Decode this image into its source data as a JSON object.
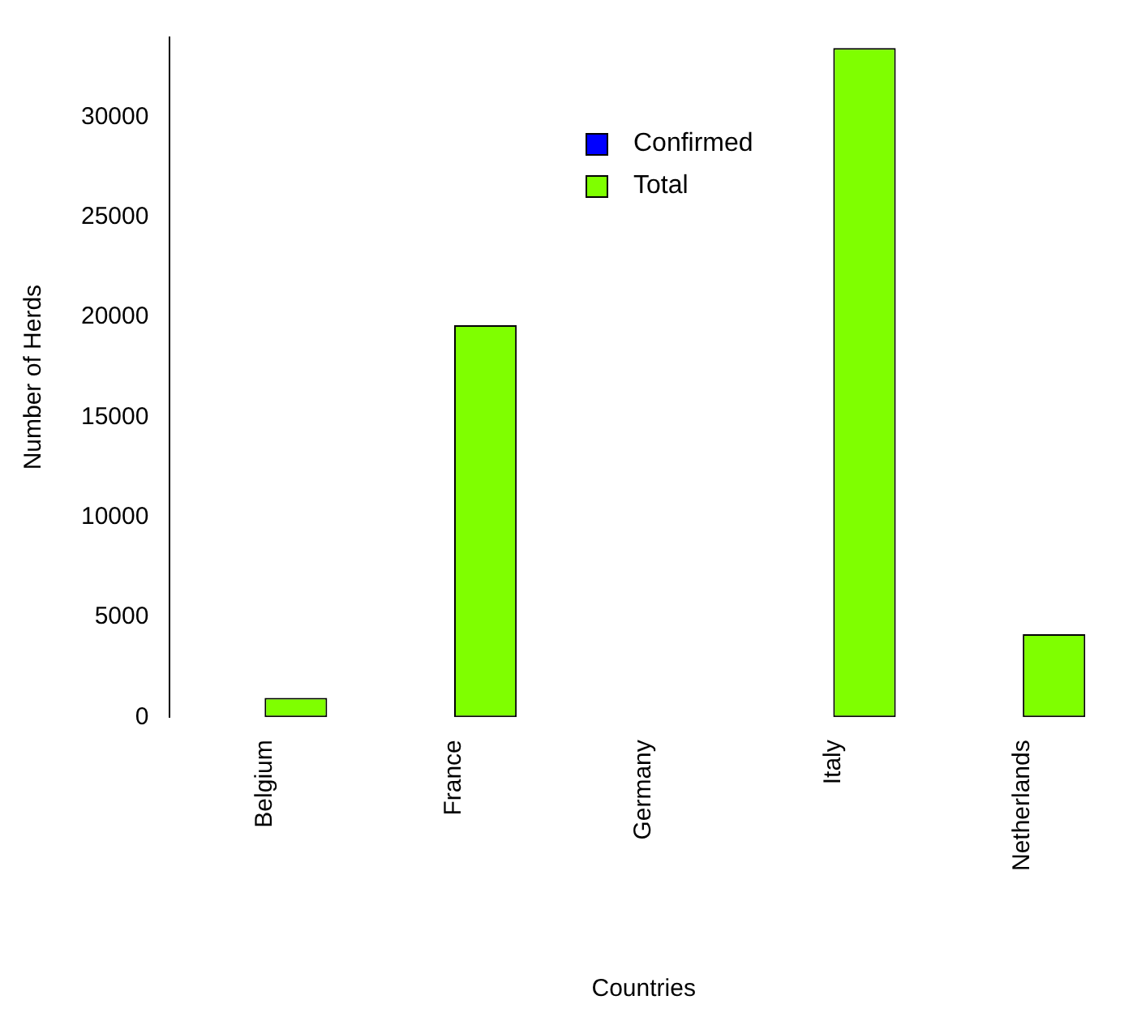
{
  "chart_data": {
    "type": "bar",
    "xlabel": "Countries",
    "ylabel": "Number of Herds",
    "categories": [
      "Belgium",
      "France",
      "Germany",
      "Italy",
      "Netherlands"
    ],
    "series": [
      {
        "name": "Confirmed",
        "color": "#0000ff",
        "values": [
          0,
          0,
          0,
          0,
          0
        ]
      },
      {
        "name": "Total",
        "color": "#7fff00",
        "values": [
          960,
          19600,
          null,
          33460,
          4150
        ]
      }
    ],
    "ylim": [
      0,
      34000
    ],
    "yticks": [
      0,
      5000,
      10000,
      15000,
      20000,
      25000,
      30000
    ],
    "grid": false,
    "legend": "top"
  }
}
